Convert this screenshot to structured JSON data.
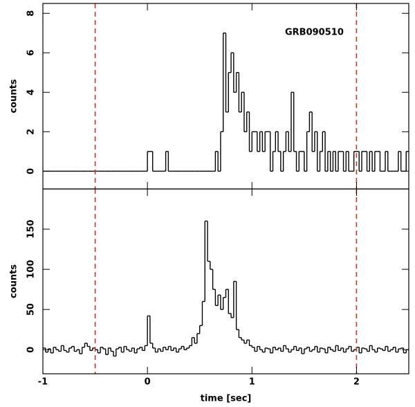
{
  "chart_data": [
    {
      "type": "histogram",
      "annotation": "GRB090510",
      "ylabel": "counts",
      "color": "#000000",
      "xlim": [
        -1,
        2.5
      ],
      "xticks": [
        -1,
        0,
        1,
        2
      ],
      "xtick_labels": false,
      "ylim": [
        -0.9,
        8.5
      ],
      "yticks": [
        0,
        2,
        4,
        6,
        8
      ],
      "vlines": {
        "x": [
          -0.5,
          2
        ],
        "color": "#c0392b"
      },
      "bins": [
        -1,
        -0.975,
        -0.95,
        -0.925,
        -0.9,
        -0.875,
        -0.85,
        -0.825,
        -0.8,
        -0.775,
        -0.75,
        -0.725,
        -0.7,
        -0.675,
        -0.65,
        -0.625,
        -0.6,
        -0.575,
        -0.55,
        -0.525,
        -0.5,
        -0.475,
        -0.45,
        -0.425,
        -0.4,
        -0.375,
        -0.35,
        -0.325,
        -0.3,
        -0.275,
        -0.25,
        -0.225,
        -0.2,
        -0.175,
        -0.15,
        -0.125,
        -0.1,
        -0.075,
        -0.05,
        -0.025,
        0,
        0.025,
        0.05,
        0.075,
        0.1,
        0.125,
        0.15,
        0.175,
        0.2,
        0.225,
        0.25,
        0.275,
        0.3,
        0.325,
        0.35,
        0.375,
        0.4,
        0.425,
        0.45,
        0.475,
        0.5,
        0.525,
        0.55,
        0.575,
        0.6,
        0.625,
        0.65,
        0.675,
        0.7,
        0.725,
        0.75,
        0.775,
        0.8,
        0.825,
        0.85,
        0.875,
        0.9,
        0.925,
        0.95,
        0.975,
        1,
        1.025,
        1.05,
        1.075,
        1.1,
        1.125,
        1.15,
        1.175,
        1.2,
        1.225,
        1.25,
        1.275,
        1.3,
        1.325,
        1.35,
        1.375,
        1.4,
        1.425,
        1.45,
        1.475,
        1.5,
        1.525,
        1.55,
        1.575,
        1.6,
        1.625,
        1.65,
        1.675,
        1.7,
        1.725,
        1.75,
        1.775,
        1.8,
        1.825,
        1.85,
        1.875,
        1.9,
        1.925,
        1.95,
        1.975,
        2,
        2.025,
        2.05,
        2.075,
        2.1,
        2.125,
        2.15,
        2.175,
        2.2,
        2.225,
        2.25,
        2.275,
        2.3,
        2.325,
        2.35,
        2.375,
        2.4,
        2.425,
        2.45,
        2.475,
        2.5
      ],
      "values": [
        0,
        0,
        0,
        0,
        0,
        0,
        0,
        0,
        0,
        0,
        0,
        0,
        0,
        0,
        0,
        0,
        0,
        0,
        0,
        0,
        0,
        0,
        0,
        0,
        0,
        0,
        0,
        0,
        0,
        0,
        0,
        0,
        0,
        0,
        0,
        0,
        0,
        0,
        0,
        0,
        1,
        1,
        0,
        0,
        0,
        0,
        0,
        1,
        0,
        0,
        0,
        0,
        0,
        0,
        0,
        0,
        0,
        0,
        0,
        0,
        0,
        0,
        0,
        0,
        0,
        0,
        1,
        0,
        2,
        7,
        3,
        5,
        6,
        4,
        5,
        3,
        4,
        2,
        3,
        1,
        2,
        2,
        1,
        2,
        1,
        2,
        2,
        0,
        1,
        2,
        1,
        0,
        1,
        2,
        1,
        4,
        1,
        0,
        1,
        1,
        0,
        2,
        3,
        1,
        2,
        0,
        1,
        2,
        0,
        1,
        0,
        1,
        0,
        1,
        1,
        0,
        1,
        0,
        0,
        1,
        1,
        0,
        1,
        1,
        0,
        1,
        0,
        1,
        1,
        0,
        0,
        1,
        0,
        0,
        0,
        0,
        1,
        0,
        0,
        1
      ]
    },
    {
      "type": "histogram",
      "ylabel": "counts",
      "xlabel": "time [sec]",
      "color": "#000000",
      "xlim": [
        -1,
        2.5
      ],
      "xticks": [
        -1,
        0,
        1,
        2
      ],
      "xtick_labels": true,
      "ylim": [
        -30,
        200
      ],
      "yticks": [
        0,
        50,
        100,
        150
      ],
      "vlines": {
        "x": [
          -0.5,
          2
        ],
        "color": "#c0392b"
      },
      "bins": [
        -1,
        -0.975,
        -0.95,
        -0.925,
        -0.9,
        -0.875,
        -0.85,
        -0.825,
        -0.8,
        -0.775,
        -0.75,
        -0.725,
        -0.7,
        -0.675,
        -0.65,
        -0.625,
        -0.6,
        -0.575,
        -0.55,
        -0.525,
        -0.5,
        -0.475,
        -0.45,
        -0.425,
        -0.4,
        -0.375,
        -0.35,
        -0.325,
        -0.3,
        -0.275,
        -0.25,
        -0.225,
        -0.2,
        -0.175,
        -0.15,
        -0.125,
        -0.1,
        -0.075,
        -0.05,
        -0.025,
        0,
        0.025,
        0.05,
        0.075,
        0.1,
        0.125,
        0.15,
        0.175,
        0.2,
        0.225,
        0.25,
        0.275,
        0.3,
        0.325,
        0.35,
        0.375,
        0.4,
        0.425,
        0.45,
        0.475,
        0.5,
        0.525,
        0.55,
        0.575,
        0.6,
        0.625,
        0.65,
        0.675,
        0.7,
        0.725,
        0.75,
        0.775,
        0.8,
        0.825,
        0.85,
        0.875,
        0.9,
        0.925,
        0.95,
        0.975,
        1,
        1.025,
        1.05,
        1.075,
        1.1,
        1.125,
        1.15,
        1.175,
        1.2,
        1.225,
        1.25,
        1.275,
        1.3,
        1.325,
        1.35,
        1.375,
        1.4,
        1.425,
        1.45,
        1.475,
        1.5,
        1.525,
        1.55,
        1.575,
        1.6,
        1.625,
        1.65,
        1.675,
        1.7,
        1.725,
        1.75,
        1.775,
        1.8,
        1.825,
        1.85,
        1.875,
        1.9,
        1.925,
        1.95,
        1.975,
        2,
        2.025,
        2.05,
        2.075,
        2.1,
        2.125,
        2.15,
        2.175,
        2.2,
        2.225,
        2.25,
        2.275,
        2.3,
        2.325,
        2.35,
        2.375,
        2.4,
        2.425,
        2.45,
        2.475,
        2.5
      ],
      "values": [
        2,
        -3,
        1,
        -4,
        3,
        0,
        -2,
        5,
        -1,
        -3,
        2,
        4,
        -2,
        0,
        -5,
        3,
        8,
        4,
        -1,
        2,
        0,
        -4,
        3,
        1,
        -6,
        2,
        -2,
        -8,
        1,
        3,
        -3,
        4,
        0,
        -2,
        2,
        -4,
        1,
        3,
        -1,
        5,
        42,
        8,
        2,
        -3,
        1,
        -2,
        3,
        0,
        4,
        -1,
        2,
        -3,
        1,
        4,
        0,
        2,
        5,
        15,
        8,
        20,
        30,
        60,
        160,
        110,
        100,
        75,
        55,
        68,
        50,
        65,
        75,
        45,
        40,
        85,
        25,
        15,
        12,
        8,
        12,
        5,
        3,
        -2,
        4,
        0,
        -3,
        2,
        1,
        -4,
        3,
        0,
        2,
        -2,
        5,
        1,
        -3,
        0,
        4,
        -1,
        2,
        -5,
        1,
        3,
        -2,
        0,
        4,
        -3,
        2,
        1,
        -4,
        3,
        0,
        -2,
        5,
        -1,
        2,
        -3,
        1,
        4,
        -2,
        0,
        3,
        -4,
        2,
        1,
        -2,
        5,
        0,
        -3,
        2,
        1,
        -1,
        4,
        -2,
        0,
        3,
        -3,
        1,
        2,
        -4,
        0
      ]
    }
  ]
}
